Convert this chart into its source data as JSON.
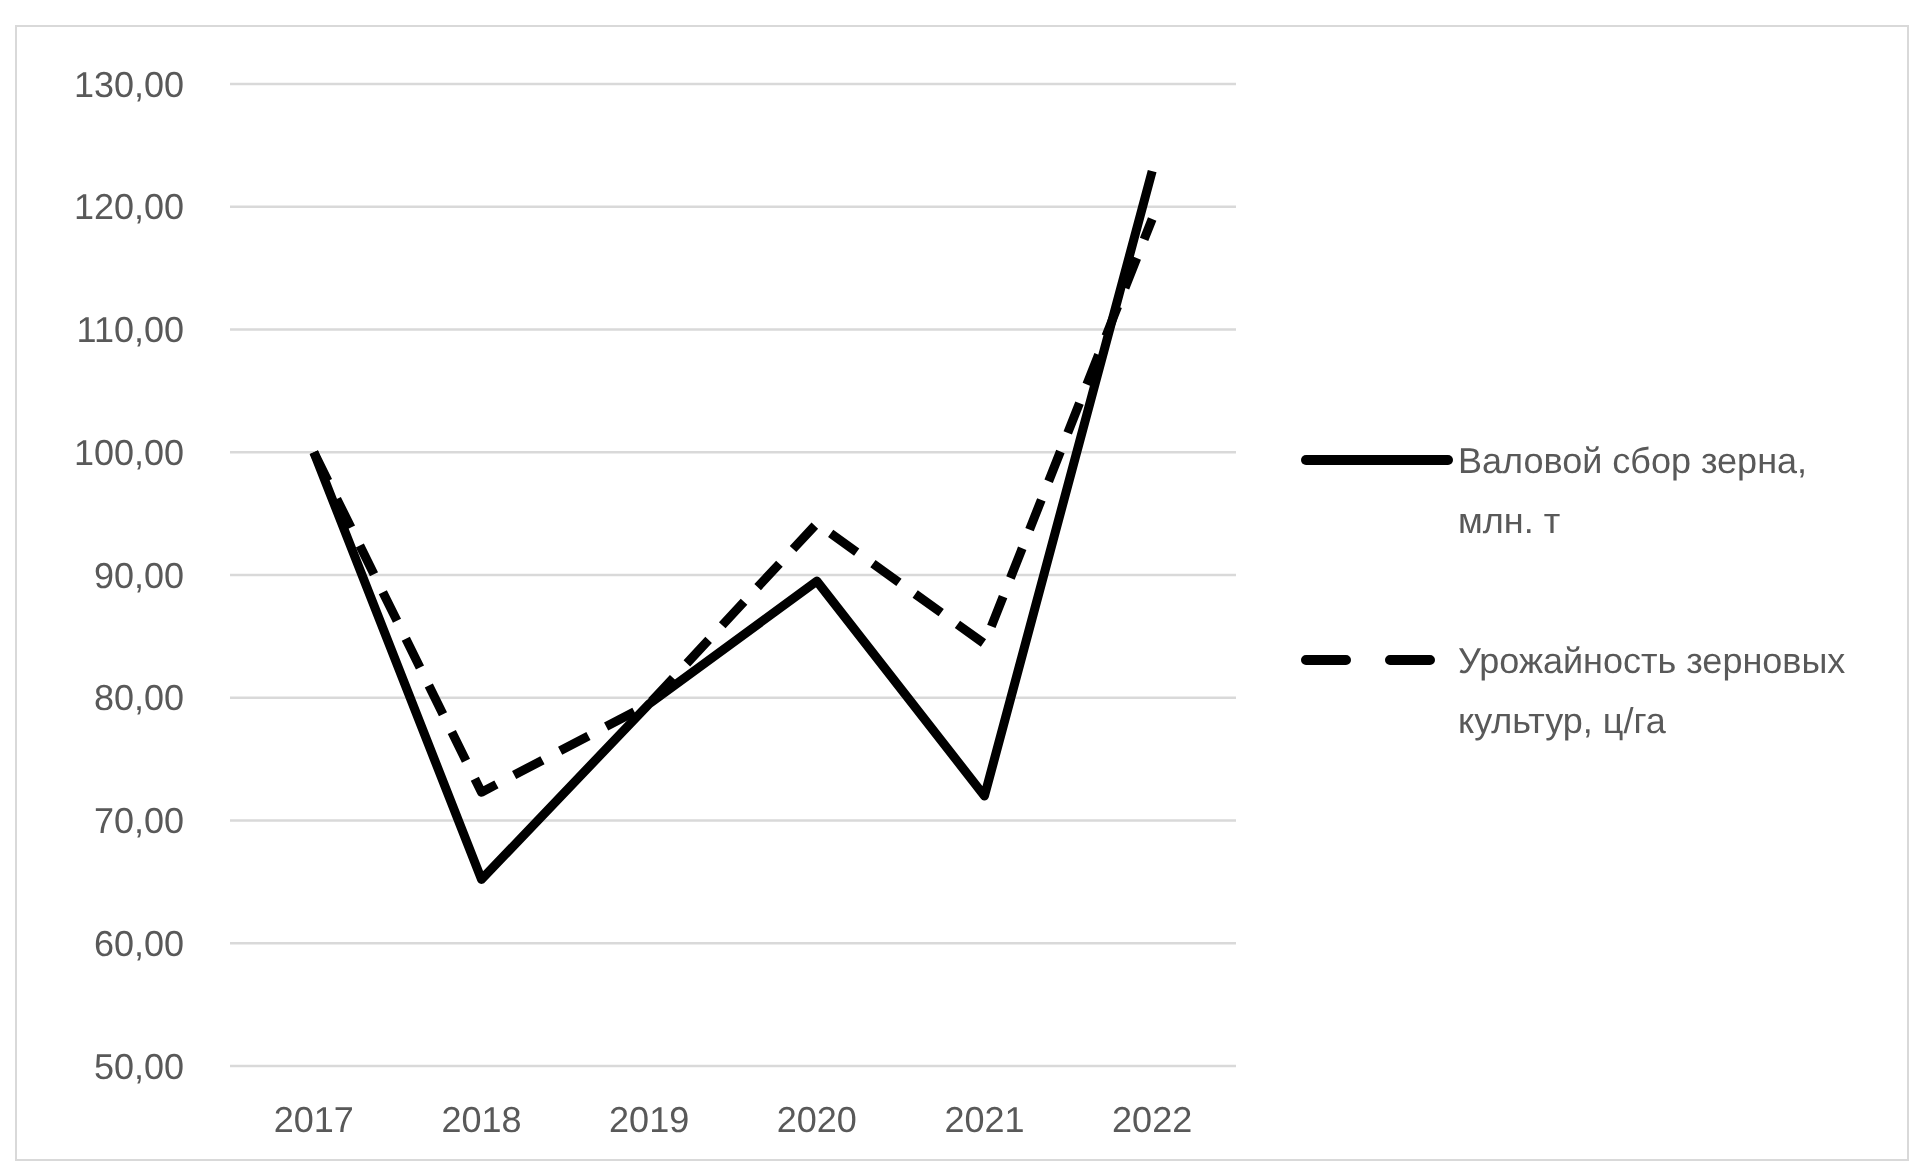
{
  "chart_data": {
    "type": "line",
    "categories": [
      "2017",
      "2018",
      "2019",
      "2020",
      "2021",
      "2022"
    ],
    "series": [
      {
        "name": "Валовой сбор зерна, млн. т",
        "color": "#000000",
        "line_style": "solid",
        "values": [
          100,
          65.2,
          79.5,
          89.5,
          72,
          122.9
        ]
      },
      {
        "name": "Урожайность зерновых культур, ц/га",
        "color": "#000000",
        "line_style": "dashed",
        "values": [
          100,
          72.3,
          79.5,
          94.2,
          84.4,
          119
        ]
      }
    ],
    "ylim": [
      50,
      130
    ],
    "yticks": [
      {
        "value": 50,
        "label": "50,00"
      },
      {
        "value": 60,
        "label": "60,00"
      },
      {
        "value": 70,
        "label": "70,00"
      },
      {
        "value": 80,
        "label": "80,00"
      },
      {
        "value": 90,
        "label": "90,00"
      },
      {
        "value": 100,
        "label": "100,00"
      },
      {
        "value": 110,
        "label": "110,00"
      },
      {
        "value": 120,
        "label": "120,00"
      },
      {
        "value": 130,
        "label": "130,00"
      }
    ],
    "grid": "y",
    "legend": "right",
    "marker": "none"
  }
}
